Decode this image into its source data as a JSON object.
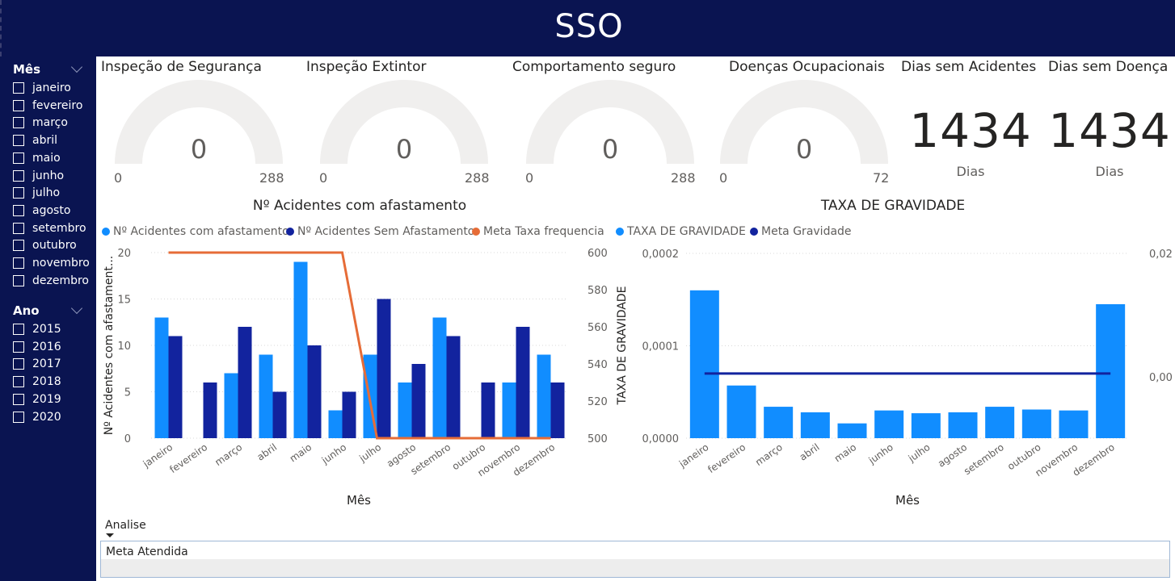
{
  "header": {
    "title": "SSO"
  },
  "sidebar": {
    "month_slicer": {
      "title": "Mês",
      "items": [
        "janeiro",
        "fevereiro",
        "março",
        "abril",
        "maio",
        "junho",
        "julho",
        "agosto",
        "setembro",
        "outubro",
        "novembro",
        "dezembro"
      ]
    },
    "year_slicer": {
      "title": "Ano",
      "items": [
        "2015",
        "2016",
        "2017",
        "2018",
        "2019",
        "2020"
      ]
    }
  },
  "gauges": [
    {
      "title": "Inspeção de Segurança",
      "value": "0",
      "min": "0",
      "max": "288",
      "fraction": 0
    },
    {
      "title": "Inspeção Extintor",
      "value": "0",
      "min": "0",
      "max": "288",
      "fraction": 0
    },
    {
      "title": "Comportamento seguro",
      "value": "0",
      "min": "0",
      "max": "288",
      "fraction": 0
    },
    {
      "title": "Doenças Ocupacionais",
      "value": "0",
      "min": "0",
      "max": "72",
      "fraction": 0
    }
  ],
  "kpis": [
    {
      "title": "Dias sem Acidentes",
      "value": "1434",
      "unit": "Dias"
    },
    {
      "title": "Dias sem Doença",
      "value": "1434",
      "unit": "Dias"
    }
  ],
  "colors": {
    "light_blue": "#118dff",
    "dark_blue": "#12239e",
    "orange": "#e66c37",
    "navy": "#0a1451"
  },
  "chart_data": [
    {
      "type": "bar",
      "title": "Nº Acidentes com afastamento",
      "xlabel": "Mês",
      "ylabel": "Nº Acidentes com afastament...",
      "ylim": [
        0,
        20
      ],
      "y_ticks": [
        "0",
        "5",
        "10",
        "15",
        "20"
      ],
      "y2lim": [
        500,
        600
      ],
      "y2_ticks": [
        "500",
        "520",
        "540",
        "560",
        "580",
        "600"
      ],
      "categories": [
        "janeiro",
        "fevereiro",
        "março",
        "abril",
        "maio",
        "junho",
        "julho",
        "agosto",
        "setembro",
        "outubro",
        "novembro",
        "dezembro"
      ],
      "series": [
        {
          "name": "Nº Acidentes com afastamento",
          "kind": "bar",
          "axis": "left",
          "color": "#118dff",
          "values": [
            13,
            0,
            7,
            9,
            19,
            3,
            9,
            6,
            13,
            0,
            6,
            9
          ]
        },
        {
          "name": "Nº Acidentes Sem Afastamento",
          "kind": "bar",
          "axis": "left",
          "color": "#12239e",
          "values": [
            11,
            6,
            12,
            5,
            10,
            5,
            15,
            8,
            11,
            6,
            12,
            6
          ]
        },
        {
          "name": "Meta Taxa frequencia",
          "kind": "line",
          "axis": "right",
          "color": "#e66c37",
          "values": [
            600,
            600,
            600,
            600,
            600,
            600,
            500,
            500,
            500,
            500,
            500,
            500
          ]
        }
      ],
      "legend": "top-left",
      "grid": true
    },
    {
      "type": "bar",
      "title": "TAXA DE GRAVIDADE",
      "xlabel": "Mês",
      "ylabel": "TAXA DE GRAVIDADE",
      "ylim": [
        0,
        0.0002
      ],
      "y_ticks": [
        "0,0000",
        "0,0001",
        "0,0002"
      ],
      "y2_ticks": [
        "0,00",
        "0,02"
      ],
      "categories": [
        "janeiro",
        "fevereiro",
        "março",
        "abril",
        "maio",
        "junho",
        "julho",
        "agosto",
        "setembro",
        "outubro",
        "novembro",
        "dezembro"
      ],
      "series": [
        {
          "name": "TAXA DE GRAVIDADE",
          "kind": "bar",
          "axis": "left",
          "color": "#118dff",
          "values": [
            0.00016,
            5.7e-05,
            3.4e-05,
            2.8e-05,
            1.6e-05,
            3e-05,
            2.7e-05,
            2.8e-05,
            3.4e-05,
            3.1e-05,
            3e-05,
            0.000145
          ]
        },
        {
          "name": "Meta Gravidade",
          "kind": "line",
          "axis": "left",
          "color": "#12239e",
          "values": [
            7e-05,
            7e-05,
            7e-05,
            7e-05,
            7e-05,
            7e-05,
            7e-05,
            7e-05,
            7e-05,
            7e-05,
            7e-05,
            7e-05
          ]
        }
      ],
      "legend": "top-left",
      "grid": true
    }
  ],
  "analise": {
    "header": "Analise",
    "row": "Meta Atendida"
  }
}
